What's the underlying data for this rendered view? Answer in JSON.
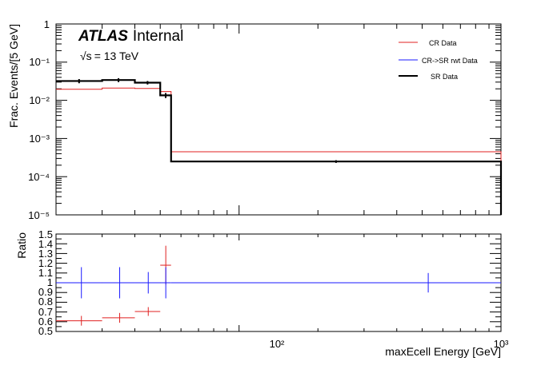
{
  "chart_data": [
    {
      "type": "line",
      "panel": "main",
      "ylabel": "Frac. Events/[5 GeV]",
      "yscale": "log",
      "ylim": [
        1e-05,
        1
      ],
      "xscale": "log",
      "xlim": [
        20,
        1000
      ],
      "ytick_labels": [
        "1",
        "10⁻¹",
        "10⁻²",
        "10⁻³",
        "10⁻⁴",
        "10⁻⁵"
      ],
      "annotations": {
        "atlas": "ATLAS",
        "status": "Internal",
        "energy_sqrt": "√s",
        "energy_rest": "= 13 TeV"
      },
      "legend": [
        "CR Data",
        "CR->SR rwt Data",
        "SR Data"
      ],
      "legend_colors": [
        "#e02020",
        "#1a1aff",
        "#000000"
      ],
      "series": [
        {
          "name": "CR Data",
          "color": "#e02020",
          "bins": [
            [
              20,
              30
            ],
            [
              30,
              40
            ],
            [
              40,
              50
            ],
            [
              50,
              55
            ],
            [
              55,
              1000
            ]
          ],
          "values": [
            0.0195,
            0.021,
            0.0205,
            0.017,
            0.00045
          ],
          "errors": [
            0,
            0,
            0,
            0,
            0
          ]
        },
        {
          "name": "CR->SR rwt Data",
          "color": "#1a1aff",
          "bins": [
            [
              20,
              30
            ],
            [
              30,
              40
            ],
            [
              40,
              50
            ],
            [
              50,
              55
            ],
            [
              55,
              1000
            ]
          ],
          "values": [
            0.032,
            0.034,
            0.029,
            0.0135,
            0.00025
          ],
          "errors": [
            0,
            0,
            0,
            0,
            0
          ]
        },
        {
          "name": "SR Data",
          "color": "#000000",
          "width": 2.2,
          "bins": [
            [
              20,
              30
            ],
            [
              30,
              40
            ],
            [
              40,
              50
            ],
            [
              50,
              55
            ],
            [
              55,
              1000
            ]
          ],
          "values": [
            0.032,
            0.034,
            0.029,
            0.0135,
            0.00025
          ],
          "errors": [
            0.004,
            0.004,
            0.003,
            0.002,
            2e-05
          ]
        }
      ]
    },
    {
      "type": "scatter",
      "panel": "ratio",
      "xlabel": "maxEcell Energy [GeV]",
      "ylabel": "Ratio",
      "ylim": [
        0.5,
        1.5
      ],
      "xscale": "log",
      "xlim": [
        20,
        1000
      ],
      "ytick_labels": [
        "0.5",
        "0.6",
        "0.7",
        "0.8",
        "0.9",
        "1",
        "1.1",
        "1.2",
        "1.3",
        "1.4",
        "1.5"
      ],
      "xtick_labels": [
        "10²",
        "10³"
      ],
      "reference_line": 1.0,
      "series": [
        {
          "name": "CR Data / SR Data",
          "color": "#e02020",
          "points": [
            [
              25,
              0.61,
              0.05
            ],
            [
              35,
              0.64,
              0.05
            ],
            [
              45,
              0.705,
              0.045
            ],
            [
              52.5,
              1.18,
              0.2
            ]
          ],
          "xerr": [
            [
              20,
              30
            ],
            [
              30,
              40
            ],
            [
              40,
              50
            ],
            [
              50,
              55
            ]
          ]
        },
        {
          "name": "CR->SR rwt Data / SR Data",
          "color": "#1a1aff",
          "points": [
            [
              25,
              1.0,
              0.16
            ],
            [
              35,
              1.0,
              0.16
            ],
            [
              45,
              1.0,
              0.11
            ],
            [
              52.5,
              1.0,
              0.16
            ],
            [
              527.5,
              1.0,
              0.1
            ]
          ],
          "xerr": [
            [
              20,
              30
            ],
            [
              30,
              40
            ],
            [
              40,
              50
            ],
            [
              50,
              55
            ],
            [
              55,
              1000
            ]
          ]
        }
      ]
    }
  ]
}
